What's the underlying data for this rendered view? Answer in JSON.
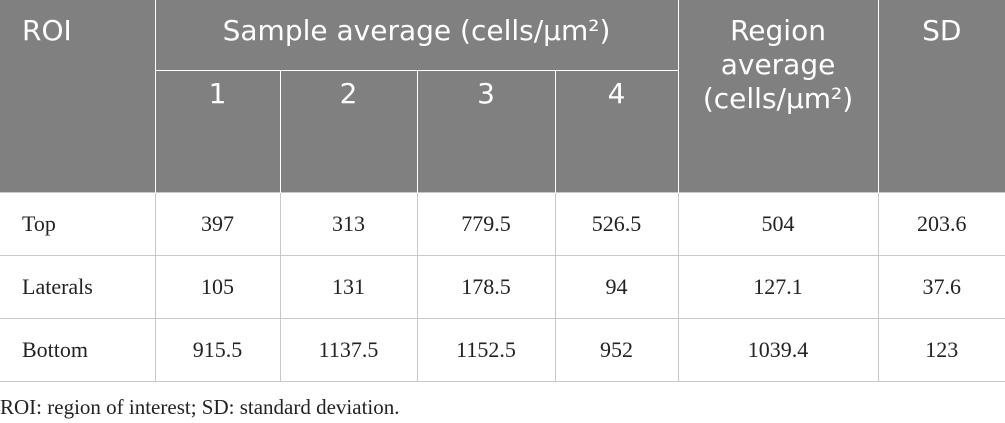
{
  "table": {
    "header": {
      "roi": "ROI",
      "sample_average": "Sample average (cells/μm²)",
      "samples": [
        "1",
        "2",
        "3",
        "4"
      ],
      "region_average": "Region average (cells/μm²)",
      "sd": "SD"
    },
    "rows": [
      [
        "Top",
        397,
        313,
        779.5,
        526.5,
        504,
        203.6
      ],
      [
        "Laterals",
        105,
        131,
        178.5,
        94,
        127.1,
        37.6
      ],
      [
        "Bottom",
        915.5,
        1137.5,
        1152.5,
        952,
        1039.4,
        123
      ]
    ]
  },
  "footnote": "ROI: region of interest; SD: standard deviation."
}
